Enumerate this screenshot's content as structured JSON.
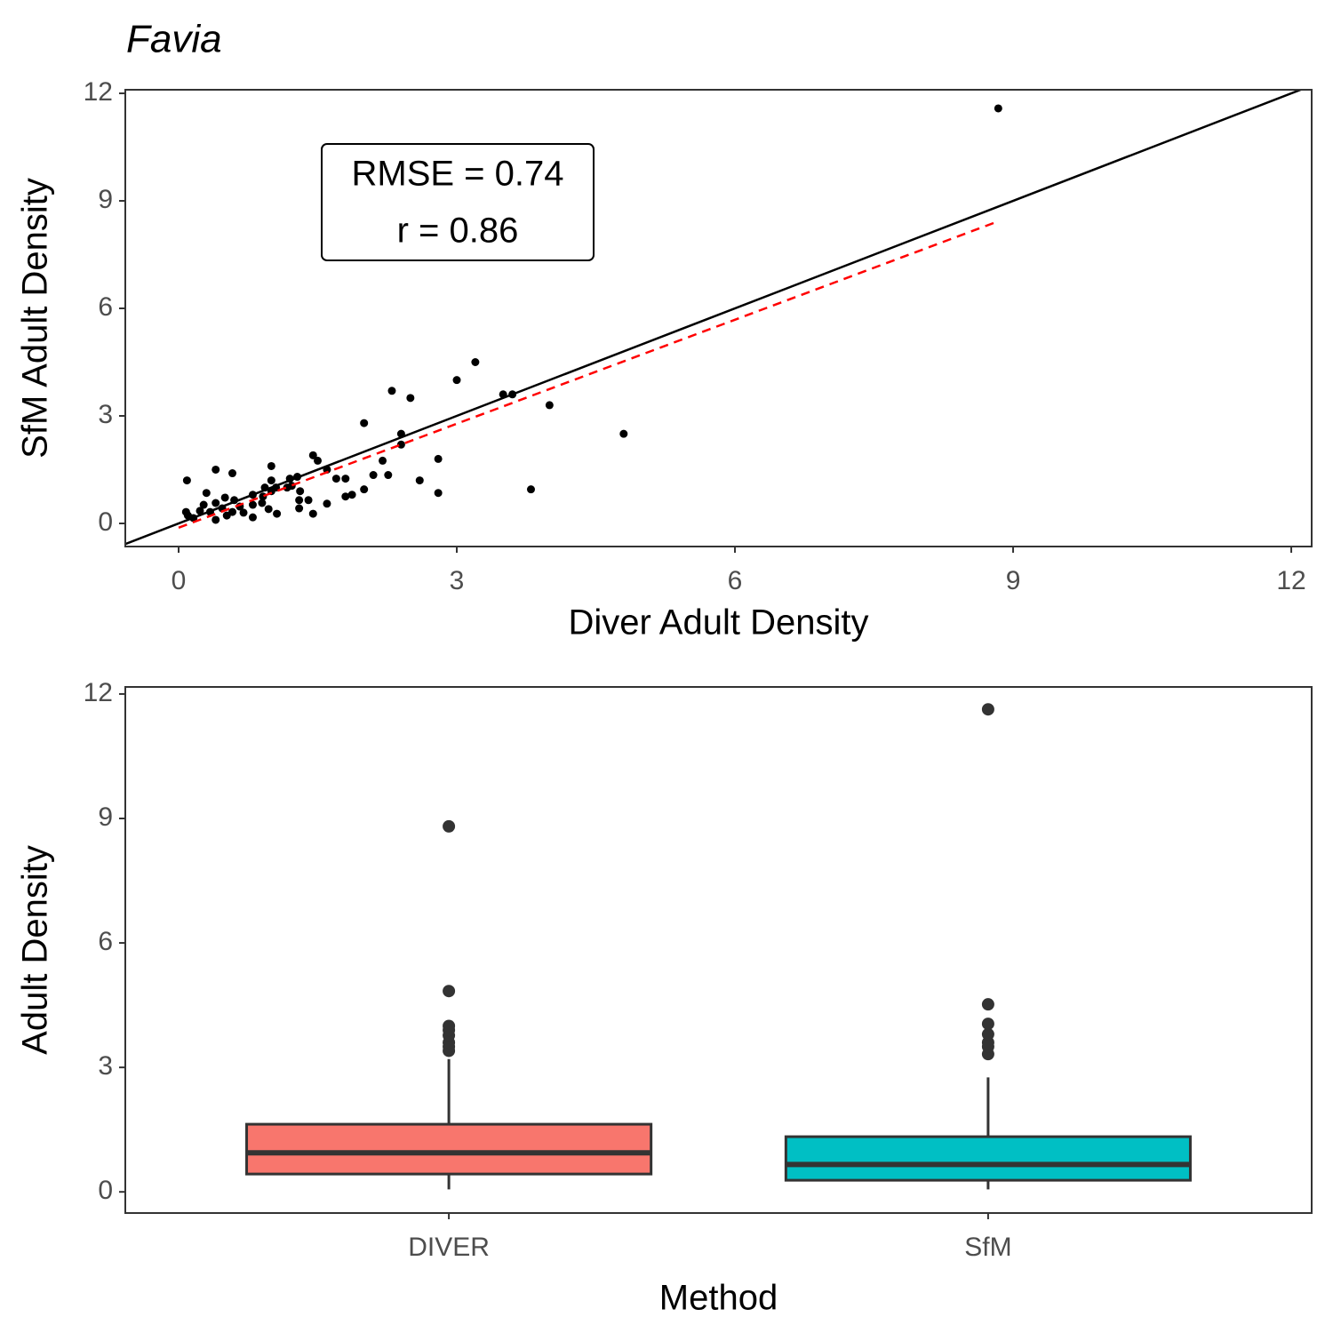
{
  "chart_data": [
    {
      "type": "scatter",
      "title": "Favia",
      "xlabel": "Diver Adult Density",
      "ylabel": "SfM Adult Density",
      "annotations": [
        "RMSE = 0.74",
        "r = 0.86"
      ],
      "xlim": [
        -0.575,
        12.22
      ],
      "ylim": [
        -0.645,
        12.1
      ],
      "xticks": [
        0,
        3,
        6,
        9,
        12
      ],
      "yticks": [
        0,
        3,
        6,
        9,
        12
      ],
      "color": "#000000",
      "x": [
        8.84,
        4.8,
        3.8,
        4.0,
        3.2,
        3.0,
        3.5,
        3.6,
        2.3,
        2.5,
        2.0,
        2.4,
        2.4,
        2.8,
        2.8,
        2.6,
        2.2,
        2.26,
        2.1,
        2.0,
        1.87,
        1.8,
        1.8,
        1.7,
        1.6,
        1.45,
        1.5,
        1.45,
        1.6,
        1.4,
        1.3,
        1.3,
        1.28,
        1.2,
        1.17,
        1.0,
        1.0,
        1.05,
        1.0,
        1.06,
        0.93,
        0.91,
        0.9,
        0.8,
        0.8,
        0.8,
        0.7,
        0.58,
        0.6,
        0.58,
        0.5,
        0.52,
        0.4,
        0.4,
        0.4,
        0.3,
        0.27,
        0.23,
        0.16,
        0.09,
        0.08,
        0.1,
        0.34,
        0.47,
        0.66,
        0.97,
        1.22,
        1.31
      ],
      "values": [
        11.58,
        2.5,
        0.95,
        3.3,
        4.5,
        4.0,
        3.6,
        3.6,
        3.7,
        3.5,
        2.8,
        2.5,
        2.2,
        1.8,
        0.85,
        1.2,
        1.75,
        1.35,
        1.35,
        0.95,
        0.8,
        0.75,
        1.25,
        1.25,
        1.5,
        1.9,
        1.75,
        0.27,
        0.55,
        0.65,
        0.42,
        0.65,
        1.3,
        1.25,
        1.0,
        1.6,
        1.2,
        1.0,
        0.9,
        0.27,
        1.0,
        0.75,
        0.57,
        0.8,
        0.52,
        0.17,
        0.3,
        1.4,
        0.65,
        0.32,
        0.72,
        0.22,
        1.5,
        0.57,
        0.1,
        0.85,
        0.52,
        0.35,
        0.15,
        1.2,
        0.32,
        0.22,
        0.32,
        0.42,
        0.47,
        0.4,
        1.05,
        0.9
      ],
      "reference_line": {
        "x": [
          -0.575,
          12.22
        ],
        "values": [
          -0.575,
          12.22
        ],
        "color": "#000000"
      },
      "fit_line": {
        "x": [
          0.0,
          8.84
        ],
        "values": [
          -0.12,
          8.43
        ],
        "color": "#ff0000"
      }
    },
    {
      "type": "box",
      "xlabel": "Method",
      "ylabel": "Adult Density",
      "categories": [
        "DIVER",
        "SfM"
      ],
      "ylim": [
        -0.51,
        12.17
      ],
      "yticks": [
        0,
        3,
        6,
        9,
        12
      ],
      "boxes": [
        {
          "low": 0.06,
          "q1": 0.43,
          "median": 0.94,
          "q3": 1.63,
          "high": 3.2,
          "outliers": [
            3.4,
            3.5,
            3.6,
            3.77,
            3.9,
            4.0,
            4.84,
            8.81
          ],
          "color": "#F8766D"
        },
        {
          "low": 0.06,
          "q1": 0.28,
          "median": 0.66,
          "q3": 1.33,
          "high": 2.76,
          "outliers": [
            3.32,
            3.5,
            3.6,
            3.8,
            4.05,
            4.52,
            11.63
          ],
          "color": "#00BFC4"
        }
      ]
    }
  ]
}
